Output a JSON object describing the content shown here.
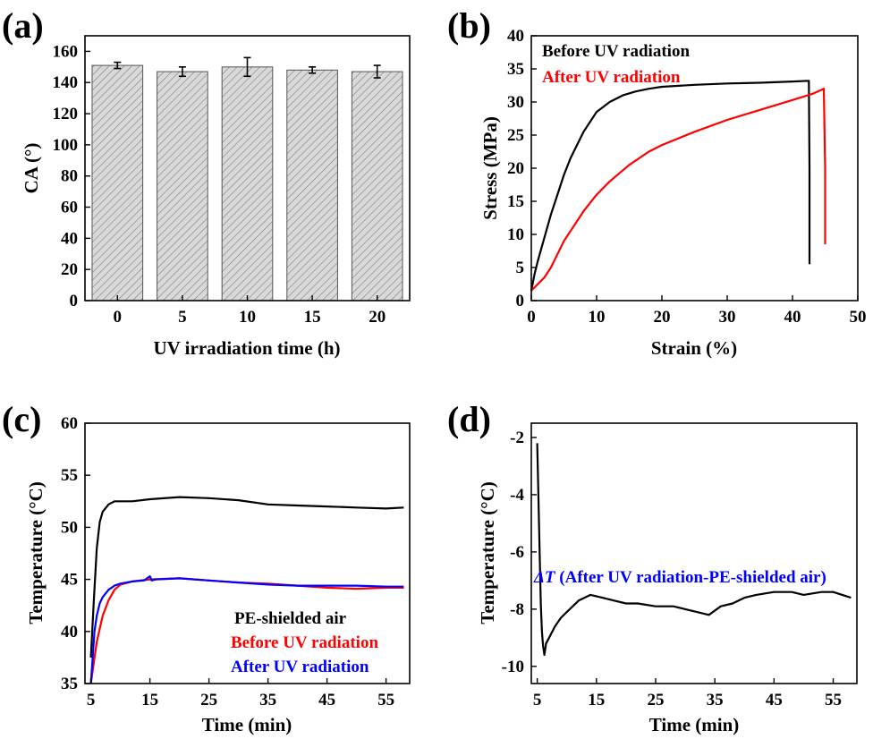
{
  "chart_data": [
    {
      "panel": "(a)",
      "type": "bar",
      "title": "",
      "xlabel": "UV irradiation time (h)",
      "ylabel": "CA (°)",
      "ylim": [
        0,
        170
      ],
      "yticks": [
        0,
        20,
        40,
        60,
        80,
        100,
        120,
        140,
        160
      ],
      "categories": [
        "0",
        "5",
        "10",
        "15",
        "20"
      ],
      "values": [
        151,
        147,
        150,
        148,
        147
      ],
      "errors": [
        2,
        3,
        6,
        2,
        4
      ],
      "bar_fill": "hatched-gray"
    },
    {
      "panel": "(b)",
      "type": "line",
      "xlabel": "Strain (%)",
      "ylabel": "Stress (MPa)",
      "xlim": [
        0,
        50
      ],
      "ylim": [
        0,
        40
      ],
      "xticks": [
        0,
        10,
        20,
        30,
        40,
        50
      ],
      "yticks": [
        0,
        5,
        10,
        15,
        20,
        25,
        30,
        35,
        40
      ],
      "legend": [
        "Before UV radiation",
        "After UV radiation"
      ],
      "legend_placement": "top-left",
      "series": [
        {
          "name": "Before UV radiation",
          "color": "#000000",
          "x": [
            0,
            0.5,
            1,
            2,
            3,
            4,
            5,
            6,
            7,
            8,
            10,
            12,
            14,
            16,
            18,
            20,
            25,
            30,
            35,
            40,
            42.5,
            42.6,
            42.6
          ],
          "y": [
            1.5,
            4,
            6,
            9.5,
            13,
            16,
            19,
            21.5,
            23.5,
            25.5,
            28.5,
            30,
            31,
            31.6,
            32,
            32.3,
            32.6,
            32.8,
            32.9,
            33.1,
            33.2,
            20,
            5.5
          ]
        },
        {
          "name": "After UV radiation",
          "color": "#ff0000",
          "x": [
            0,
            1,
            2,
            3,
            4,
            5,
            6,
            8,
            10,
            12,
            15,
            18,
            20,
            25,
            30,
            35,
            40,
            43,
            44.8,
            45,
            45
          ],
          "y": [
            1.5,
            2.5,
            3.5,
            5,
            7,
            9,
            10.5,
            13.5,
            16,
            18,
            20.5,
            22.5,
            23.5,
            25.5,
            27.3,
            28.8,
            30.3,
            31.2,
            32,
            20,
            8.5
          ]
        }
      ]
    },
    {
      "panel": "(c)",
      "type": "line",
      "xlabel": "Time (min)",
      "ylabel": "Temperature (°C)",
      "xlim": [
        4,
        59
      ],
      "ylim": [
        35,
        60
      ],
      "xticks": [
        5,
        15,
        25,
        35,
        45,
        55
      ],
      "yticks": [
        35,
        40,
        45,
        50,
        55,
        60
      ],
      "legend": [
        "PE-shielded air",
        "Before UV radiation",
        "After UV radiation"
      ],
      "legend_placement": "bottom-right",
      "series": [
        {
          "name": "PE-shielded air",
          "color": "#000000",
          "x": [
            5,
            5.5,
            6,
            6.5,
            7,
            8,
            9,
            10,
            12,
            15,
            20,
            25,
            30,
            35,
            40,
            45,
            50,
            55,
            58
          ],
          "y": [
            37.5,
            43,
            48,
            50.5,
            51.5,
            52.2,
            52.5,
            52.5,
            52.5,
            52.7,
            52.9,
            52.8,
            52.6,
            52.2,
            52.1,
            52,
            51.9,
            51.8,
            51.9
          ]
        },
        {
          "name": "Before UV radiation",
          "color": "#ff0000",
          "x": [
            5,
            5.5,
            6,
            7,
            8,
            9,
            10,
            12,
            15,
            20,
            25,
            30,
            35,
            40,
            45,
            50,
            55,
            58
          ],
          "y": [
            35,
            37,
            39,
            41.5,
            43,
            44,
            44.5,
            44.8,
            45,
            45.1,
            44.9,
            44.7,
            44.6,
            44.4,
            44.2,
            44.1,
            44.2,
            44.2
          ]
        },
        {
          "name": "After UV radiation",
          "color": "#0000ff",
          "x": [
            5,
            5.3,
            5.6,
            6,
            6.5,
            7,
            8,
            9,
            10,
            12,
            14,
            15,
            15.3,
            16,
            20,
            25,
            30,
            35,
            40,
            45,
            50,
            55,
            58
          ],
          "y": [
            35,
            37.5,
            40,
            41.5,
            42.7,
            43.3,
            44,
            44.4,
            44.6,
            44.8,
            44.9,
            45.3,
            44.9,
            45,
            45.1,
            44.9,
            44.7,
            44.5,
            44.4,
            44.4,
            44.4,
            44.3,
            44.3
          ]
        }
      ]
    },
    {
      "panel": "(d)",
      "type": "line",
      "xlabel": "Time (min)",
      "ylabel": "Temperature (°C)",
      "xlim": [
        4,
        59
      ],
      "ylim": [
        -10.6,
        -1.5
      ],
      "xticks": [
        5,
        15,
        25,
        35,
        45,
        55
      ],
      "yticks": [
        -10,
        -8,
        -6,
        -4,
        -2
      ],
      "annotation_symbol": "ΔT",
      "annotation_text": " (After UV radiation-PE-shielded air)",
      "series": [
        {
          "name": "ΔT (After UV radiation-PE-shielded air)",
          "color": "#000000",
          "x": [
            5,
            5.2,
            5.4,
            5.6,
            5.8,
            6,
            6.2,
            6.5,
            7,
            8,
            9,
            10,
            11,
            12,
            14,
            16,
            18,
            20,
            22,
            25,
            28,
            30,
            32,
            34,
            36,
            38,
            40,
            42,
            45,
            48,
            50,
            53,
            55,
            58
          ],
          "y": [
            -2.2,
            -4,
            -6,
            -7.8,
            -8.8,
            -9.3,
            -9.6,
            -9.2,
            -9,
            -8.6,
            -8.3,
            -8.1,
            -7.9,
            -7.7,
            -7.5,
            -7.6,
            -7.7,
            -7.8,
            -7.8,
            -7.9,
            -7.9,
            -8,
            -8.1,
            -8.2,
            -7.9,
            -7.8,
            -7.6,
            -7.5,
            -7.4,
            -7.4,
            -7.5,
            -7.4,
            -7.4,
            -7.6
          ]
        }
      ]
    }
  ]
}
